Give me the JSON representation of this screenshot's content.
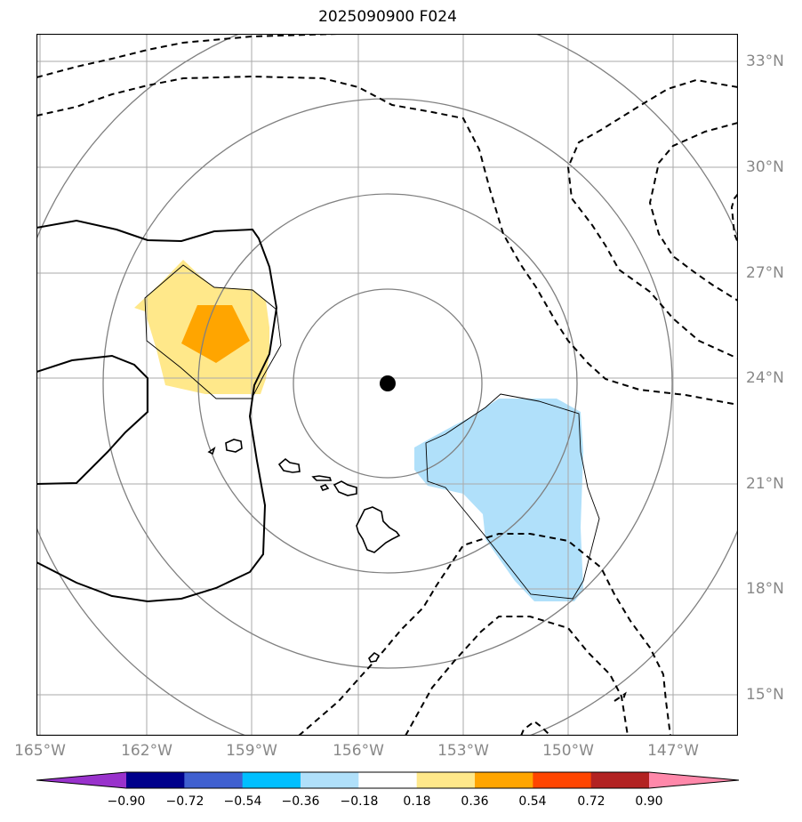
{
  "title": "2025090900 F024",
  "map": {
    "latitude_labels": [
      "33°N",
      "30°N",
      "27°N",
      "24°N",
      "21°N",
      "18°N",
      "15°N"
    ],
    "longitude_labels": [
      "165°W",
      "162°W",
      "159°W",
      "156°W",
      "153°W",
      "150°W",
      "147°W"
    ],
    "center_marker": "storm-center-dot"
  },
  "colorbar": {
    "ticks": [
      "−0.90",
      "−0.72",
      "−0.54",
      "−0.36",
      "−0.18",
      "0.18",
      "0.36",
      "0.54",
      "0.72",
      "0.90"
    ],
    "colors": [
      "#9932cc",
      "#00008b",
      "#4060d0",
      "#00bfff",
      "#b0e0fa",
      "#ffffff",
      "#ffe88a",
      "#ffa500",
      "#ff4500",
      "#b22222",
      "#ff88aa"
    ]
  },
  "colors": {
    "positive_light": "#ffe88a",
    "positive_strong": "#ffa500",
    "negative_light": "#b0e0fa",
    "range_rings": "#808080",
    "grid": "#aaaaaa",
    "land_outline": "#000000"
  }
}
